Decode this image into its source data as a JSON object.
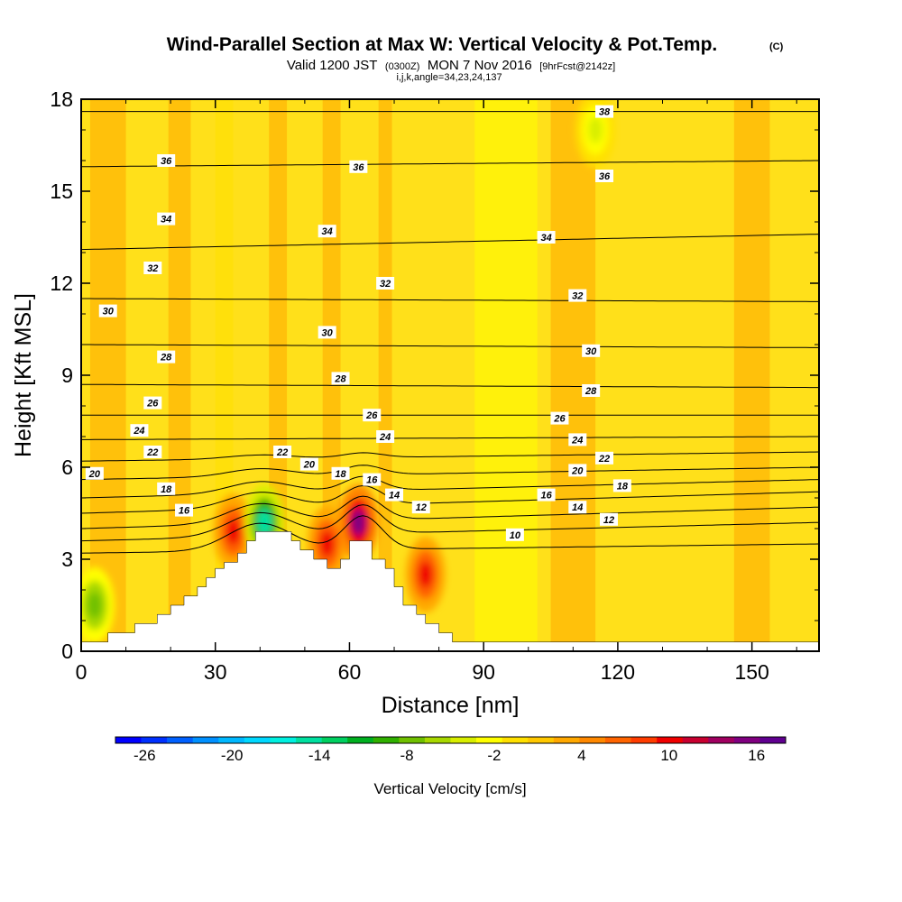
{
  "title": {
    "main": "Wind-Parallel Section at Max W: Vertical Velocity & Pot.Temp.",
    "copyright": "(C)",
    "valid_prefix": "Valid 1200 JST",
    "valid_utc": "(0300Z)",
    "valid_date": "MON 7 Nov 2016",
    "forecast": "[9hrFcst@2142z]",
    "indices": "i,j,k,angle=34,23,24,137"
  },
  "chart_data": {
    "type": "heatmap",
    "xlabel": "Distance [nm]",
    "ylabel": "Height [Kft MSL]",
    "xlim": [
      0,
      165
    ],
    "ylim": [
      0,
      18
    ],
    "x_ticks": [
      0,
      30,
      60,
      90,
      120,
      150
    ],
    "y_ticks": [
      0,
      3,
      6,
      9,
      12,
      15,
      18
    ],
    "x_tick_labels": [
      "0",
      "30",
      "60",
      "90",
      "120",
      "150"
    ],
    "y_tick_labels": [
      "0",
      "3",
      "6",
      "9",
      "12",
      "15",
      "18"
    ],
    "colorbar": {
      "label": "Vertical Velocity [cm/s]",
      "min": -28,
      "max": 18,
      "tick_values": [
        -26,
        -20,
        -14,
        -8,
        -2,
        4,
        10,
        16
      ],
      "tick_labels": [
        "-26",
        "-20",
        "-14",
        "-8",
        "-2",
        "4",
        "10",
        "16"
      ],
      "colors": [
        "#0000ff",
        "#0030ff",
        "#0060ff",
        "#0090ff",
        "#00b8ff",
        "#00d8ff",
        "#00f0e0",
        "#00e0a0",
        "#00d060",
        "#00b020",
        "#30b000",
        "#70c000",
        "#a8d800",
        "#d8ee00",
        "#ffff00",
        "#ffe000",
        "#ffc800",
        "#ffa800",
        "#ff8800",
        "#ff6400",
        "#ff3c00",
        "#f00000",
        "#c80030",
        "#a00060",
        "#800080",
        "#600090"
      ]
    },
    "terrain": [
      [
        0,
        0.3
      ],
      [
        6,
        0.3
      ],
      [
        6,
        0.6
      ],
      [
        12,
        0.6
      ],
      [
        12,
        0.9
      ],
      [
        17,
        0.9
      ],
      [
        17,
        1.2
      ],
      [
        20,
        1.2
      ],
      [
        20,
        1.5
      ],
      [
        23,
        1.5
      ],
      [
        23,
        1.8
      ],
      [
        26,
        1.8
      ],
      [
        26,
        2.1
      ],
      [
        28,
        2.1
      ],
      [
        28,
        2.4
      ],
      [
        30,
        2.4
      ],
      [
        30,
        2.7
      ],
      [
        32,
        2.7
      ],
      [
        32,
        2.9
      ],
      [
        35,
        2.9
      ],
      [
        35,
        3.2
      ],
      [
        37,
        3.2
      ],
      [
        37,
        3.6
      ],
      [
        39,
        3.6
      ],
      [
        39,
        3.9
      ],
      [
        47,
        3.9
      ],
      [
        47,
        3.6
      ],
      [
        49,
        3.6
      ],
      [
        49,
        3.3
      ],
      [
        52,
        3.3
      ],
      [
        52,
        3.0
      ],
      [
        55,
        3.0
      ],
      [
        55,
        2.7
      ],
      [
        58,
        2.7
      ],
      [
        58,
        3.0
      ],
      [
        60,
        3.0
      ],
      [
        60,
        3.6
      ],
      [
        65,
        3.6
      ],
      [
        65,
        3.0
      ],
      [
        68,
        3.0
      ],
      [
        68,
        2.7
      ],
      [
        70,
        2.7
      ],
      [
        70,
        2.1
      ],
      [
        72,
        2.1
      ],
      [
        72,
        1.5
      ],
      [
        75,
        1.5
      ],
      [
        75,
        1.2
      ],
      [
        77,
        1.2
      ],
      [
        77,
        0.9
      ],
      [
        80,
        0.9
      ],
      [
        80,
        0.6
      ],
      [
        83,
        0.6
      ],
      [
        83,
        0.3
      ],
      [
        165,
        0.3
      ]
    ],
    "vertical_velocity_features": [
      {
        "kind": "updraft",
        "x": 34,
        "y": 3.9,
        "value": 10
      },
      {
        "kind": "downdraft",
        "x": 41,
        "y": 4.2,
        "value": -14
      },
      {
        "kind": "updraft",
        "x": 55,
        "y": 3.5,
        "value": 10
      },
      {
        "kind": "updraft",
        "x": 62,
        "y": 4.2,
        "value": 16
      },
      {
        "kind": "updraft",
        "x": 77,
        "y": 2.5,
        "value": 10
      },
      {
        "kind": "downdraft",
        "x": 3,
        "y": 1.5,
        "value": -8
      },
      {
        "kind": "downdraft",
        "x": 115,
        "y": 17,
        "value": -4
      }
    ],
    "theta_contours": [
      {
        "value": 10,
        "y_left": 3.2,
        "y_right": 3.5
      },
      {
        "value": 12,
        "y_left": 3.6,
        "y_right": 4.2
      },
      {
        "value": 14,
        "y_left": 4.0,
        "y_right": 4.7
      },
      {
        "value": 16,
        "y_left": 4.5,
        "y_right": 5.2
      },
      {
        "value": 18,
        "y_left": 5.0,
        "y_right": 5.6
      },
      {
        "value": 20,
        "y_left": 5.6,
        "y_right": 6.0
      },
      {
        "value": 22,
        "y_left": 6.2,
        "y_right": 6.5
      },
      {
        "value": 24,
        "y_left": 6.9,
        "y_right": 7.0
      },
      {
        "value": 26,
        "y_left": 7.7,
        "y_right": 7.7
      },
      {
        "value": 28,
        "y_left": 8.7,
        "y_right": 8.6
      },
      {
        "value": 30,
        "y_left": 10.0,
        "y_right": 9.9
      },
      {
        "value": 32,
        "y_left": 11.5,
        "y_right": 11.4
      },
      {
        "value": 34,
        "y_left": 13.1,
        "y_right": 13.6
      },
      {
        "value": 36,
        "y_left": 15.8,
        "y_right": 16.0
      },
      {
        "value": 38,
        "y_left": 17.6,
        "y_right": 17.6
      }
    ],
    "contour_labels": [
      {
        "text": "10",
        "x": 97,
        "y": 3.8
      },
      {
        "text": "12",
        "x": 76,
        "y": 4.7
      },
      {
        "text": "12",
        "x": 118,
        "y": 4.3
      },
      {
        "text": "14",
        "x": 70,
        "y": 5.1
      },
      {
        "text": "14",
        "x": 111,
        "y": 4.7
      },
      {
        "text": "16",
        "x": 23,
        "y": 4.6
      },
      {
        "text": "16",
        "x": 65,
        "y": 5.6
      },
      {
        "text": "16",
        "x": 104,
        "y": 5.1
      },
      {
        "text": "18",
        "x": 19,
        "y": 5.3
      },
      {
        "text": "18",
        "x": 58,
        "y": 5.8
      },
      {
        "text": "18",
        "x": 121,
        "y": 5.4
      },
      {
        "text": "20",
        "x": 3,
        "y": 5.8
      },
      {
        "text": "20",
        "x": 51,
        "y": 6.1
      },
      {
        "text": "20",
        "x": 111,
        "y": 5.9
      },
      {
        "text": "22",
        "x": 16,
        "y": 6.5
      },
      {
        "text": "22",
        "x": 45,
        "y": 6.5
      },
      {
        "text": "22",
        "x": 117,
        "y": 6.3
      },
      {
        "text": "24",
        "x": 13,
        "y": 7.2
      },
      {
        "text": "24",
        "x": 68,
        "y": 7.0
      },
      {
        "text": "24",
        "x": 111,
        "y": 6.9
      },
      {
        "text": "26",
        "x": 16,
        "y": 8.1
      },
      {
        "text": "26",
        "x": 65,
        "y": 7.7
      },
      {
        "text": "26",
        "x": 107,
        "y": 7.6
      },
      {
        "text": "28",
        "x": 19,
        "y": 9.6
      },
      {
        "text": "28",
        "x": 58,
        "y": 8.9
      },
      {
        "text": "28",
        "x": 114,
        "y": 8.5
      },
      {
        "text": "30",
        "x": 6,
        "y": 11.1
      },
      {
        "text": "30",
        "x": 55,
        "y": 10.4
      },
      {
        "text": "30",
        "x": 114,
        "y": 9.8
      },
      {
        "text": "32",
        "x": 16,
        "y": 12.5
      },
      {
        "text": "32",
        "x": 68,
        "y": 12.0
      },
      {
        "text": "32",
        "x": 111,
        "y": 11.6
      },
      {
        "text": "34",
        "x": 19,
        "y": 14.1
      },
      {
        "text": "34",
        "x": 55,
        "y": 13.7
      },
      {
        "text": "34",
        "x": 104,
        "y": 13.5
      },
      {
        "text": "36",
        "x": 19,
        "y": 16.0
      },
      {
        "text": "36",
        "x": 62,
        "y": 15.8
      },
      {
        "text": "36",
        "x": 117,
        "y": 15.5
      },
      {
        "text": "38",
        "x": 117,
        "y": 17.6
      }
    ]
  }
}
